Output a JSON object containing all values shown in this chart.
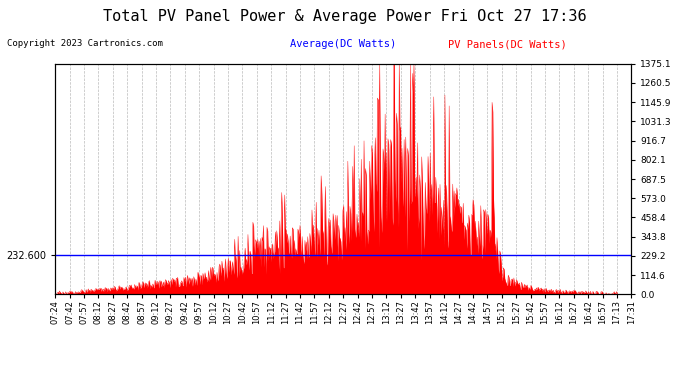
{
  "title": "Total PV Panel Power & Average Power Fri Oct 27 17:36",
  "copyright": "Copyright 2023 Cartronics.com",
  "legend_average": "Average(DC Watts)",
  "legend_pv": "PV Panels(DC Watts)",
  "avg_value": 232.6,
  "y_right_ticks": [
    0.0,
    114.6,
    229.2,
    343.8,
    458.4,
    573.0,
    687.5,
    802.1,
    916.7,
    1031.3,
    1145.9,
    1260.5,
    1375.1
  ],
  "y_max": 1375.1,
  "y_min": 0.0,
  "background_color": "#ffffff",
  "grid_color": "#bbbbbb",
  "fill_color": "#ff0000",
  "line_color": "#ff0000",
  "avg_line_color": "#0000ff",
  "title_fontsize": 11,
  "tick_fontsize": 6.5,
  "x_tick_labels": [
    "07:24",
    "07:42",
    "07:57",
    "08:12",
    "08:27",
    "08:42",
    "08:57",
    "09:12",
    "09:27",
    "09:42",
    "09:57",
    "10:12",
    "10:27",
    "10:42",
    "10:57",
    "11:12",
    "11:27",
    "11:42",
    "11:57",
    "12:12",
    "12:27",
    "12:42",
    "12:57",
    "13:12",
    "13:27",
    "13:42",
    "13:57",
    "14:12",
    "14:27",
    "14:42",
    "14:57",
    "15:12",
    "15:27",
    "15:42",
    "15:57",
    "16:12",
    "16:27",
    "16:42",
    "16:57",
    "17:13",
    "17:31"
  ],
  "pv_envelope": [
    5,
    8,
    15,
    25,
    30,
    35,
    45,
    55,
    60,
    70,
    80,
    100,
    130,
    160,
    200,
    230,
    250,
    260,
    270,
    280,
    310,
    340,
    500,
    650,
    700,
    620,
    550,
    480,
    430,
    390,
    350,
    300,
    80,
    50,
    30,
    20,
    15,
    10,
    5,
    3,
    2
  ],
  "pv_spikes": {
    "22": 750,
    "23": 920,
    "24": 1375,
    "25": 870,
    "26": 680,
    "31": 1145,
    "14": 430,
    "15": 400,
    "16": 410
  }
}
